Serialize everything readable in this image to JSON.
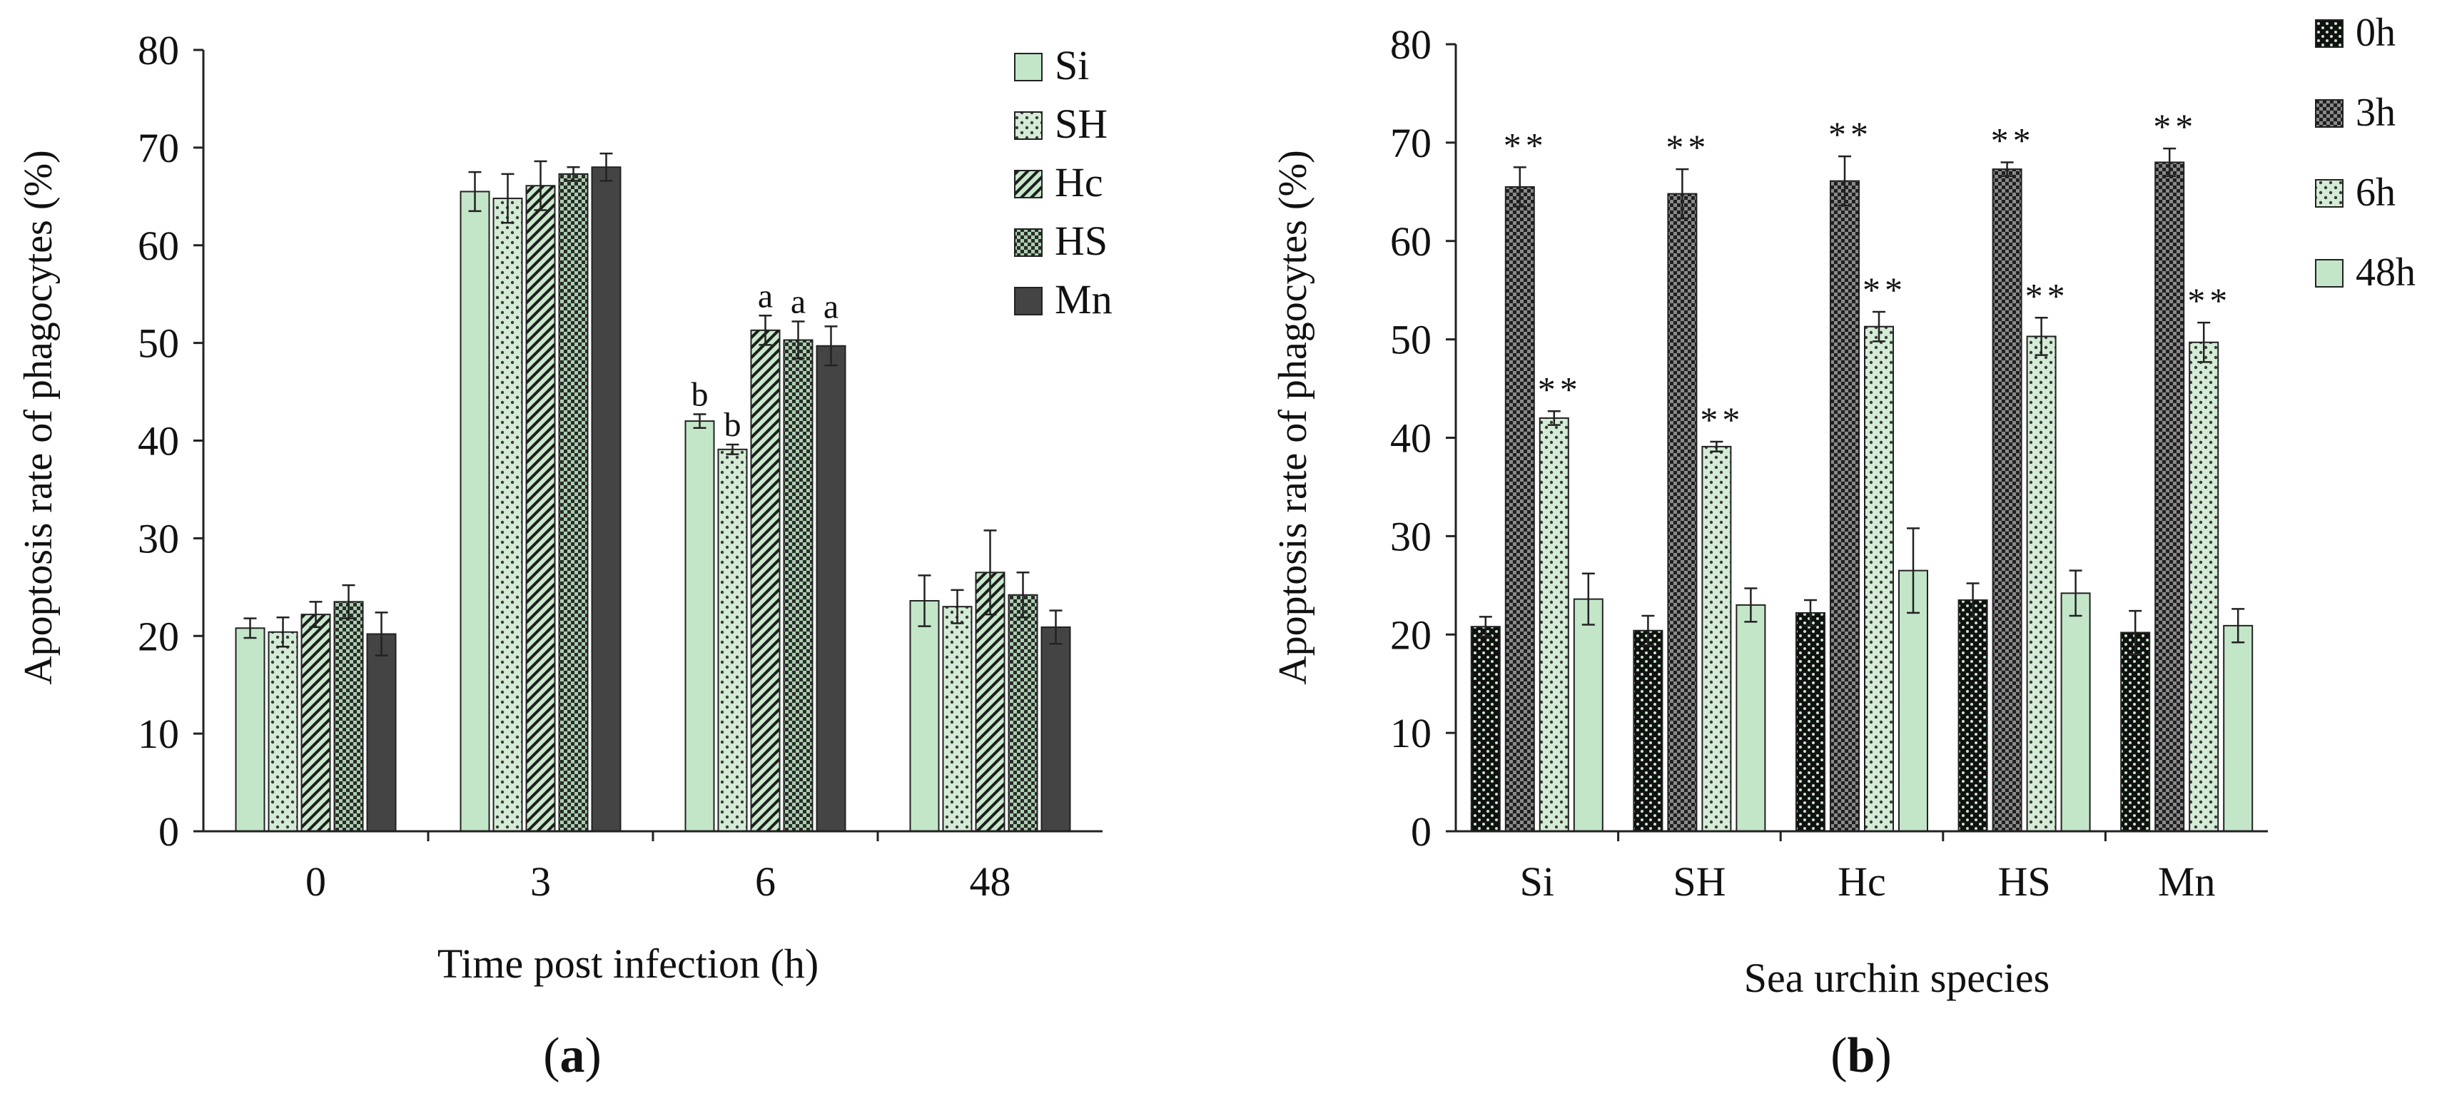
{
  "colors": {
    "axis": "#222222",
    "Si": "#c3e6c8",
    "SH": "#d4ecd6",
    "Hc": "#c8e8cc",
    "HS": "#aacfae",
    "Mn": "#444444",
    "h0": "#1a1a1a",
    "h3": "#3a3a3a",
    "h6": "#d4ecd6",
    "h48": "#c3e6c8"
  },
  "chart_data": [
    {
      "type": "bar",
      "panel_label": "a",
      "xlabel": "Time post infection (h)",
      "ylabel": "Apoptosis rate of phagocytes (%)",
      "ylim": [
        0,
        80
      ],
      "yticks": [
        "0",
        "10",
        "20",
        "30",
        "40",
        "50",
        "60",
        "70",
        "80"
      ],
      "legend_position": "top-right",
      "categories": [
        "0",
        "3",
        "6",
        "48"
      ],
      "series": [
        {
          "name": "Si",
          "pattern": "solid-light",
          "values": [
            20.8,
            65.5,
            42.0,
            23.6
          ],
          "errors": [
            1.0,
            2.0,
            0.7,
            2.6
          ],
          "labels": [
            "",
            "",
            "b",
            ""
          ]
        },
        {
          "name": "SH",
          "pattern": "dots",
          "values": [
            20.4,
            64.8,
            39.1,
            23.0
          ],
          "errors": [
            1.5,
            2.5,
            0.5,
            1.7
          ],
          "labels": [
            "",
            "",
            "b",
            ""
          ]
        },
        {
          "name": "Hc",
          "pattern": "diagonal",
          "values": [
            22.2,
            66.1,
            51.3,
            26.5
          ],
          "errors": [
            1.3,
            2.5,
            1.5,
            4.3
          ],
          "labels": [
            "",
            "",
            "a",
            ""
          ]
        },
        {
          "name": "HS",
          "pattern": "checker",
          "values": [
            23.5,
            67.3,
            50.3,
            24.2
          ],
          "errors": [
            1.7,
            0.7,
            1.9,
            2.3
          ],
          "labels": [
            "",
            "",
            "a",
            ""
          ]
        },
        {
          "name": "Mn",
          "pattern": "solid-dark",
          "values": [
            20.2,
            68.0,
            49.7,
            20.9
          ],
          "errors": [
            2.2,
            1.4,
            2.0,
            1.7
          ],
          "labels": [
            "",
            "",
            "a",
            ""
          ]
        }
      ]
    },
    {
      "type": "bar",
      "panel_label": "b",
      "xlabel": "Sea urchin species",
      "ylabel": "Apoptosis rate of phagocytes (%)",
      "ylim": [
        0,
        80
      ],
      "yticks": [
        "0",
        "10",
        "20",
        "30",
        "40",
        "50",
        "60",
        "70",
        "80"
      ],
      "legend_position": "top-right",
      "categories": [
        "Si",
        "SH",
        "Hc",
        "HS",
        "Mn"
      ],
      "series": [
        {
          "name": "0h",
          "pattern": "dark-dots",
          "values": [
            20.8,
            20.4,
            22.2,
            23.5,
            20.2
          ],
          "errors": [
            1.0,
            1.5,
            1.3,
            1.7,
            2.2
          ],
          "labels": [
            "",
            "",
            "",
            "",
            ""
          ]
        },
        {
          "name": "3h",
          "pattern": "dark-checker",
          "values": [
            65.5,
            64.8,
            66.1,
            67.3,
            68.0
          ],
          "errors": [
            2.0,
            2.5,
            2.5,
            0.7,
            1.4
          ],
          "labels": [
            "**",
            "**",
            "**",
            "**",
            "**"
          ]
        },
        {
          "name": "6h",
          "pattern": "dots",
          "values": [
            42.0,
            39.1,
            51.3,
            50.3,
            49.7
          ],
          "errors": [
            0.7,
            0.5,
            1.5,
            1.9,
            2.0
          ],
          "labels": [
            "**",
            "**",
            "**",
            "**",
            "**"
          ]
        },
        {
          "name": "48h",
          "pattern": "solid-light",
          "values": [
            23.6,
            23.0,
            26.5,
            24.2,
            20.9
          ],
          "errors": [
            2.6,
            1.7,
            4.3,
            2.3,
            1.7
          ],
          "labels": [
            "",
            "",
            "",
            "",
            ""
          ]
        }
      ]
    }
  ]
}
